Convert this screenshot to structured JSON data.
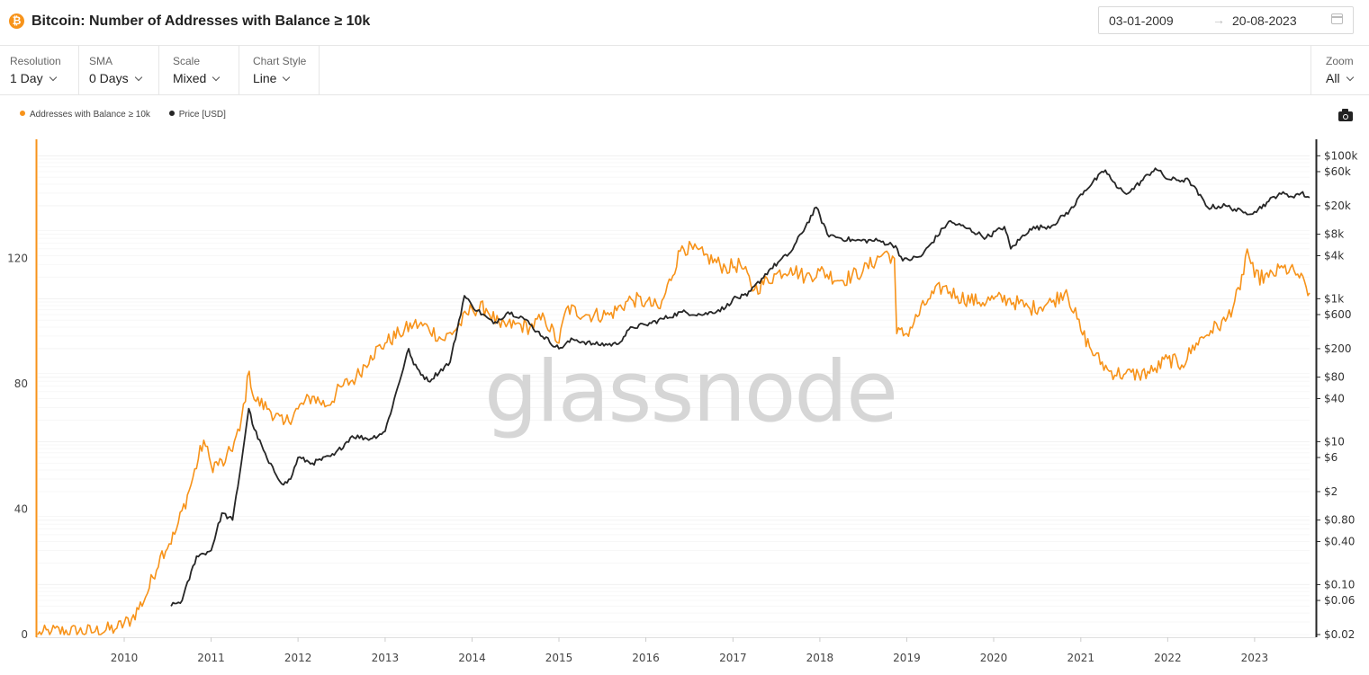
{
  "header": {
    "title": "Bitcoin: Number of Addresses with Balance ≥ 10k",
    "date_from": "03-01-2009",
    "date_to": "20-08-2023",
    "date_arrow": "→"
  },
  "controls": {
    "resolution": {
      "label": "Resolution",
      "value": "1 Day"
    },
    "sma": {
      "label": "SMA",
      "value": "0 Days"
    },
    "scale": {
      "label": "Scale",
      "value": "Mixed"
    },
    "chart_style": {
      "label": "Chart Style",
      "value": "Line"
    },
    "zoom": {
      "label": "Zoom",
      "value": "All"
    }
  },
  "watermark": "glassnode",
  "colors": {
    "addresses": "#f7931a",
    "price": "#262626"
  },
  "icons": {
    "logo": "bitcoin-icon",
    "calendar": "calendar-icon",
    "camera": "camera-icon"
  },
  "chart_data": {
    "type": "line",
    "legend": [
      "Addresses with Balance ≥ 10k",
      "Price [USD]"
    ],
    "legend_position": "top-left",
    "x_ticks": [
      "2010",
      "2011",
      "2012",
      "2013",
      "2014",
      "2015",
      "2016",
      "2017",
      "2018",
      "2019",
      "2020",
      "2021",
      "2022",
      "2023"
    ],
    "y_left": {
      "ticks": [
        "0",
        "40",
        "80",
        "120"
      ],
      "range": [
        0,
        158
      ]
    },
    "y_right": {
      "scale": "log",
      "ticks": [
        {
          "label": "$100k",
          "value": 100000
        },
        {
          "label": "$60k",
          "value": 60000
        },
        {
          "label": "$20k",
          "value": 20000
        },
        {
          "label": "$8k",
          "value": 8000
        },
        {
          "label": "$4k",
          "value": 4000
        },
        {
          "label": "$1k",
          "value": 1000
        },
        {
          "label": "$600",
          "value": 600
        },
        {
          "label": "$200",
          "value": 200
        },
        {
          "label": "$80",
          "value": 80
        },
        {
          "label": "$40",
          "value": 40
        },
        {
          "label": "$10",
          "value": 10
        },
        {
          "label": "$6",
          "value": 6
        },
        {
          "label": "$2",
          "value": 2
        },
        {
          "label": "$0.80",
          "value": 0.8
        },
        {
          "label": "$0.40",
          "value": 0.4
        },
        {
          "label": "$0.10",
          "value": 0.1
        },
        {
          "label": "$0.06",
          "value": 0.06
        },
        {
          "label": "$0.02",
          "value": 0.02
        }
      ],
      "range": [
        0.02,
        170000
      ]
    },
    "grid": true,
    "series": [
      {
        "name": "Addresses with Balance ≥ 10k",
        "axis": "left",
        "points": [
          [
            "2009-01-03",
            0
          ],
          [
            "2009-03-01",
            1
          ],
          [
            "2009-09-01",
            1
          ],
          [
            "2009-12-01",
            2
          ],
          [
            "2010-02-01",
            5
          ],
          [
            "2010-04-01",
            12
          ],
          [
            "2010-06-01",
            25
          ],
          [
            "2010-08-01",
            32
          ],
          [
            "2010-10-01",
            46
          ],
          [
            "2010-12-01",
            62
          ],
          [
            "2011-01-01",
            54
          ],
          [
            "2011-03-01",
            55
          ],
          [
            "2011-05-01",
            65
          ],
          [
            "2011-06-10",
            84
          ],
          [
            "2011-07-01",
            75
          ],
          [
            "2011-09-01",
            72
          ],
          [
            "2011-11-01",
            67
          ],
          [
            "2012-01-01",
            72
          ],
          [
            "2012-03-01",
            76
          ],
          [
            "2012-05-01",
            73
          ],
          [
            "2012-07-01",
            79
          ],
          [
            "2012-09-01",
            82
          ],
          [
            "2012-11-01",
            89
          ],
          [
            "2013-01-01",
            93
          ],
          [
            "2013-03-01",
            96
          ],
          [
            "2013-05-01",
            99
          ],
          [
            "2013-07-01",
            98
          ],
          [
            "2013-09-01",
            94
          ],
          [
            "2013-11-01",
            98
          ],
          [
            "2014-01-01",
            104
          ],
          [
            "2014-03-01",
            104
          ],
          [
            "2014-05-01",
            98
          ],
          [
            "2014-07-01",
            99
          ],
          [
            "2014-09-01",
            98
          ],
          [
            "2014-11-01",
            101
          ],
          [
            "2015-01-01",
            93
          ],
          [
            "2015-02-01",
            104
          ],
          [
            "2015-05-01",
            102
          ],
          [
            "2015-08-01",
            102
          ],
          [
            "2015-11-01",
            107
          ],
          [
            "2016-01-01",
            106
          ],
          [
            "2016-03-01",
            104
          ],
          [
            "2016-06-01",
            124
          ],
          [
            "2016-09-01",
            121
          ],
          [
            "2016-12-01",
            117
          ],
          [
            "2017-02-01",
            118
          ],
          [
            "2017-04-01",
            110
          ],
          [
            "2017-07-01",
            115
          ],
          [
            "2017-09-01",
            117
          ],
          [
            "2017-11-01",
            114
          ],
          [
            "2018-01-01",
            116
          ],
          [
            "2018-04-01",
            113
          ],
          [
            "2018-07-01",
            116
          ],
          [
            "2018-10-01",
            122
          ],
          [
            "2018-11-10",
            120
          ],
          [
            "2018-11-20",
            96
          ],
          [
            "2019-01-01",
            96
          ],
          [
            "2019-04-01",
            107
          ],
          [
            "2019-06-01",
            111
          ],
          [
            "2019-08-01",
            108
          ],
          [
            "2019-11-01",
            106
          ],
          [
            "2020-01-01",
            107
          ],
          [
            "2020-03-01",
            107
          ],
          [
            "2020-06-01",
            104
          ],
          [
            "2020-09-01",
            106
          ],
          [
            "2020-11-01",
            110
          ],
          [
            "2021-01-01",
            97
          ],
          [
            "2021-03-01",
            89
          ],
          [
            "2021-05-01",
            84
          ],
          [
            "2021-07-01",
            83
          ],
          [
            "2021-09-01",
            83
          ],
          [
            "2021-11-01",
            84
          ],
          [
            "2022-01-01",
            88
          ],
          [
            "2022-03-01",
            86
          ],
          [
            "2022-05-01",
            93
          ],
          [
            "2022-07-01",
            97
          ],
          [
            "2022-09-01",
            100
          ],
          [
            "2022-11-01",
            110
          ],
          [
            "2022-12-01",
            123
          ],
          [
            "2023-01-01",
            114
          ],
          [
            "2023-03-01",
            114
          ],
          [
            "2023-05-01",
            117
          ],
          [
            "2023-07-01",
            115
          ],
          [
            "2023-08-20",
            109
          ]
        ]
      },
      {
        "name": "Price [USD]",
        "axis": "right",
        "points": [
          [
            "2010-07-17",
            0.05
          ],
          [
            "2010-09-01",
            0.06
          ],
          [
            "2010-11-01",
            0.25
          ],
          [
            "2011-01-01",
            0.3
          ],
          [
            "2011-02-15",
            1.0
          ],
          [
            "2011-04-01",
            0.8
          ],
          [
            "2011-05-01",
            3.5
          ],
          [
            "2011-06-08",
            29
          ],
          [
            "2011-07-01",
            15
          ],
          [
            "2011-09-01",
            5
          ],
          [
            "2011-11-01",
            2.5
          ],
          [
            "2011-12-01",
            3
          ],
          [
            "2012-01-01",
            6
          ],
          [
            "2012-03-01",
            5
          ],
          [
            "2012-06-01",
            6.5
          ],
          [
            "2012-08-15",
            12
          ],
          [
            "2012-11-01",
            11
          ],
          [
            "2013-01-01",
            14
          ],
          [
            "2013-04-10",
            200
          ],
          [
            "2013-05-01",
            120
          ],
          [
            "2013-07-01",
            70
          ],
          [
            "2013-10-01",
            130
          ],
          [
            "2013-11-30",
            1100
          ],
          [
            "2014-01-01",
            800
          ],
          [
            "2014-04-01",
            450
          ],
          [
            "2014-06-01",
            650
          ],
          [
            "2014-08-01",
            550
          ],
          [
            "2014-10-01",
            350
          ],
          [
            "2015-01-01",
            200
          ],
          [
            "2015-03-01",
            270
          ],
          [
            "2015-06-01",
            230
          ],
          [
            "2015-09-01",
            230
          ],
          [
            "2015-11-05",
            400
          ],
          [
            "2016-01-01",
            430
          ],
          [
            "2016-06-01",
            650
          ],
          [
            "2016-09-01",
            600
          ],
          [
            "2016-12-01",
            750
          ],
          [
            "2017-01-01",
            1000
          ],
          [
            "2017-03-01",
            1100
          ],
          [
            "2017-06-01",
            2500
          ],
          [
            "2017-09-01",
            4500
          ],
          [
            "2017-12-17",
            19000
          ],
          [
            "2018-02-01",
            8000
          ],
          [
            "2018-04-01",
            7000
          ],
          [
            "2018-06-01",
            6500
          ],
          [
            "2018-09-01",
            6500
          ],
          [
            "2018-11-15",
            5500
          ],
          [
            "2018-12-15",
            3400
          ],
          [
            "2019-03-01",
            3900
          ],
          [
            "2019-06-26",
            12000
          ],
          [
            "2019-09-01",
            10000
          ],
          [
            "2019-12-01",
            7200
          ],
          [
            "2020-02-15",
            10200
          ],
          [
            "2020-03-13",
            5000
          ],
          [
            "2020-06-01",
            9500
          ],
          [
            "2020-09-01",
            10500
          ],
          [
            "2020-12-01",
            19000
          ],
          [
            "2021-01-01",
            29000
          ],
          [
            "2021-04-14",
            63000
          ],
          [
            "2021-06-01",
            36000
          ],
          [
            "2021-07-20",
            30000
          ],
          [
            "2021-11-10",
            67000
          ],
          [
            "2022-01-01",
            47000
          ],
          [
            "2022-04-01",
            45000
          ],
          [
            "2022-06-18",
            19000
          ],
          [
            "2022-09-01",
            20000
          ],
          [
            "2022-11-15",
            16000
          ],
          [
            "2023-01-01",
            16500
          ],
          [
            "2023-03-01",
            23000
          ],
          [
            "2023-04-15",
            30000
          ],
          [
            "2023-06-01",
            27000
          ],
          [
            "2023-07-15",
            30000
          ],
          [
            "2023-08-20",
            26000
          ]
        ]
      }
    ]
  }
}
